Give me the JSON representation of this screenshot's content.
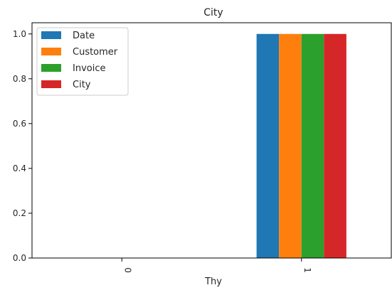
{
  "chart_data": {
    "type": "bar",
    "title": "City",
    "xlabel": "Thy",
    "ylabel": "",
    "categories": [
      "0",
      "1"
    ],
    "series": [
      {
        "name": "Date",
        "color": "#1f77b4",
        "values": [
          0,
          1.0
        ]
      },
      {
        "name": "Customer",
        "color": "#ff7f0e",
        "values": [
          0,
          1.0
        ]
      },
      {
        "name": "Invoice",
        "color": "#2ca02c",
        "values": [
          0,
          1.0
        ]
      },
      {
        "name": "City",
        "color": "#d62728",
        "values": [
          0,
          1.0
        ]
      }
    ],
    "ylim": [
      0,
      1.05
    ],
    "yticks": [
      "0.0",
      "0.2",
      "0.4",
      "0.6",
      "0.8",
      "1.0"
    ],
    "grid": false,
    "legend_position": "top-left"
  }
}
